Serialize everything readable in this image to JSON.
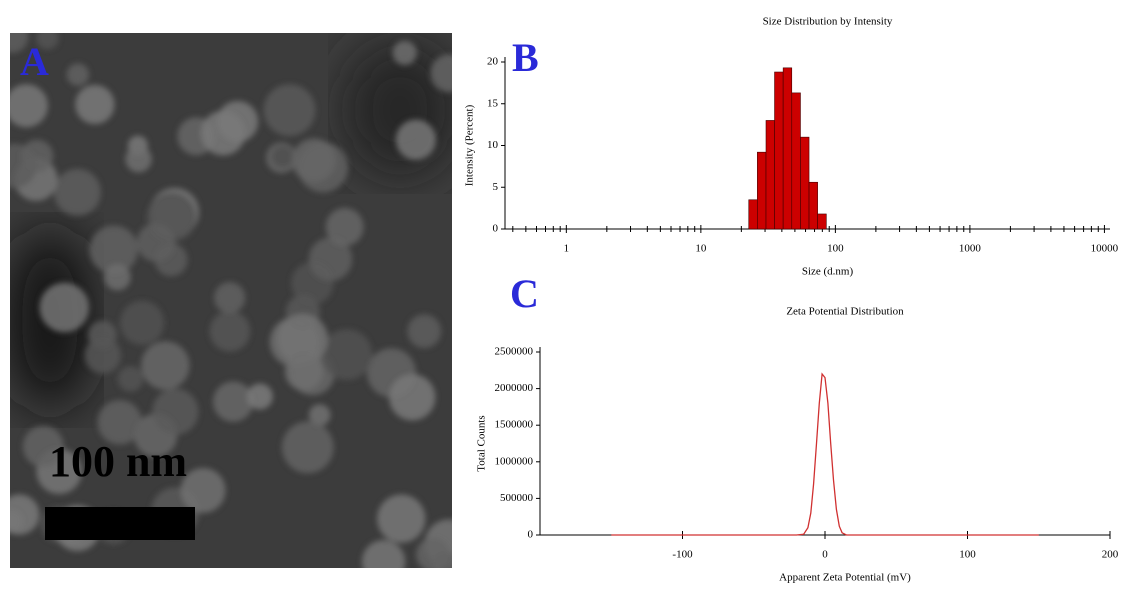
{
  "image_panel": {
    "label": "A",
    "scale_bar": "100 nm"
  },
  "chart_data": [
    {
      "type": "histogram",
      "panel_label": "B",
      "title": "Size Distribution by Intensity",
      "x_label": "Size (d.nm)",
      "y_label": "Intensity (Percent)",
      "bins": [
        22.7,
        26.3,
        30.5,
        35.3,
        40.9,
        47.4,
        55.0,
        63.7,
        73.8,
        85.6
      ],
      "values": [
        3.5,
        9.2,
        13,
        18.8,
        19.3,
        16.3,
        11,
        5.6,
        1.8
      ],
      "color": "#cc0000",
      "log_x": true,
      "xlim": [
        0.35,
        11000
      ],
      "xticks": [
        1,
        10,
        100,
        1000,
        10000
      ],
      "ylim": [
        0,
        20
      ],
      "yticks": [
        0,
        5,
        10,
        15,
        20
      ]
    },
    {
      "type": "line",
      "panel_label": "C",
      "title": "Zeta Potential Distribution",
      "x_label": "Apparent Zeta Potential (mV)",
      "y_label": "Total Counts",
      "x": [
        -150,
        -20,
        -15,
        -12,
        -10,
        -8,
        -6,
        -4,
        -2,
        0,
        2,
        4,
        6,
        8,
        10,
        12,
        15,
        150
      ],
      "values": [
        0,
        0,
        10000,
        100000,
        300000,
        700000,
        1250000,
        1800000,
        2200000,
        2150000,
        1800000,
        1250000,
        750000,
        350000,
        120000,
        30000,
        0,
        0
      ],
      "color": "#d03030",
      "log_x": false,
      "xlim": [
        -200,
        200
      ],
      "xticks": [
        -100,
        0,
        100,
        200
      ],
      "ylim": [
        0,
        2500000
      ],
      "yticks": [
        0,
        500000,
        1000000,
        1500000,
        2000000,
        2500000
      ]
    }
  ]
}
